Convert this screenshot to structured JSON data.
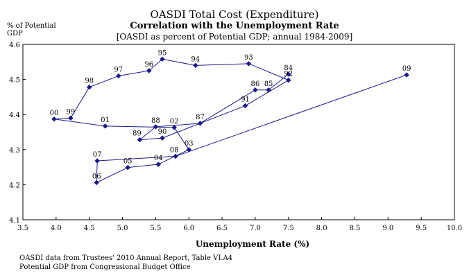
{
  "chart_data": {
    "type": "scatter",
    "title": "OASDI Total Cost (Expenditure)",
    "subtitle": "Correlation with the Unemployment Rate",
    "subtitle2": "[OASDI as percent of Potential GDP;  annual 1984-2009]",
    "y_unit": "% of Potential GDP",
    "xlabel": "Unemployment Rate (%)",
    "xlim": [
      3.5,
      10.0
    ],
    "ylim": [
      4.1,
      4.6
    ],
    "x_ticks": [
      "3.5",
      "4.0",
      "4.5",
      "5.0",
      "5.5",
      "6.0",
      "6.5",
      "7.0",
      "7.5",
      "8.0",
      "8.5",
      "9.0",
      "9.5",
      "10.0"
    ],
    "y_ticks": [
      "4.1",
      "4.2",
      "4.3",
      "4.4",
      "4.5",
      "4.6"
    ],
    "grid": false,
    "series_color": "#1a1a8c",
    "points": [
      {
        "label": "84",
        "x": 7.5,
        "y": 4.515
      },
      {
        "label": "85",
        "x": 7.2,
        "y": 4.47
      },
      {
        "label": "86",
        "x": 7.0,
        "y": 4.47
      },
      {
        "label": "87",
        "x": 6.17,
        "y": 4.375
      },
      {
        "label": "88",
        "x": 5.5,
        "y": 4.365
      },
      {
        "label": "89",
        "x": 5.26,
        "y": 4.328
      },
      {
        "label": "90",
        "x": 5.6,
        "y": 4.333
      },
      {
        "label": "91",
        "x": 6.85,
        "y": 4.425
      },
      {
        "label": "92",
        "x": 7.5,
        "y": 4.498
      },
      {
        "label": "93",
        "x": 6.9,
        "y": 4.545
      },
      {
        "label": "94",
        "x": 6.1,
        "y": 4.54
      },
      {
        "label": "95",
        "x": 5.6,
        "y": 4.558
      },
      {
        "label": "96",
        "x": 5.4,
        "y": 4.525
      },
      {
        "label": "97",
        "x": 4.94,
        "y": 4.51
      },
      {
        "label": "98",
        "x": 4.5,
        "y": 4.478
      },
      {
        "label": "99",
        "x": 4.22,
        "y": 4.39
      },
      {
        "label": "00",
        "x": 3.97,
        "y": 4.387
      },
      {
        "label": "01",
        "x": 4.74,
        "y": 4.367
      },
      {
        "label": "02",
        "x": 5.78,
        "y": 4.363
      },
      {
        "label": "03",
        "x": 6.0,
        "y": 4.3
      },
      {
        "label": "04",
        "x": 5.54,
        "y": 4.258
      },
      {
        "label": "05",
        "x": 5.08,
        "y": 4.249
      },
      {
        "label": "06",
        "x": 4.61,
        "y": 4.206
      },
      {
        "label": "07",
        "x": 4.62,
        "y": 4.268
      },
      {
        "label": "08",
        "x": 5.8,
        "y": 4.281
      },
      {
        "label": "09",
        "x": 9.28,
        "y": 4.513
      }
    ]
  },
  "source_notes": [
    "OASDI data from Trustees' 2010 Annual Report, Table VI.A4",
    "Potential GDP from Congressional Budget Office"
  ]
}
